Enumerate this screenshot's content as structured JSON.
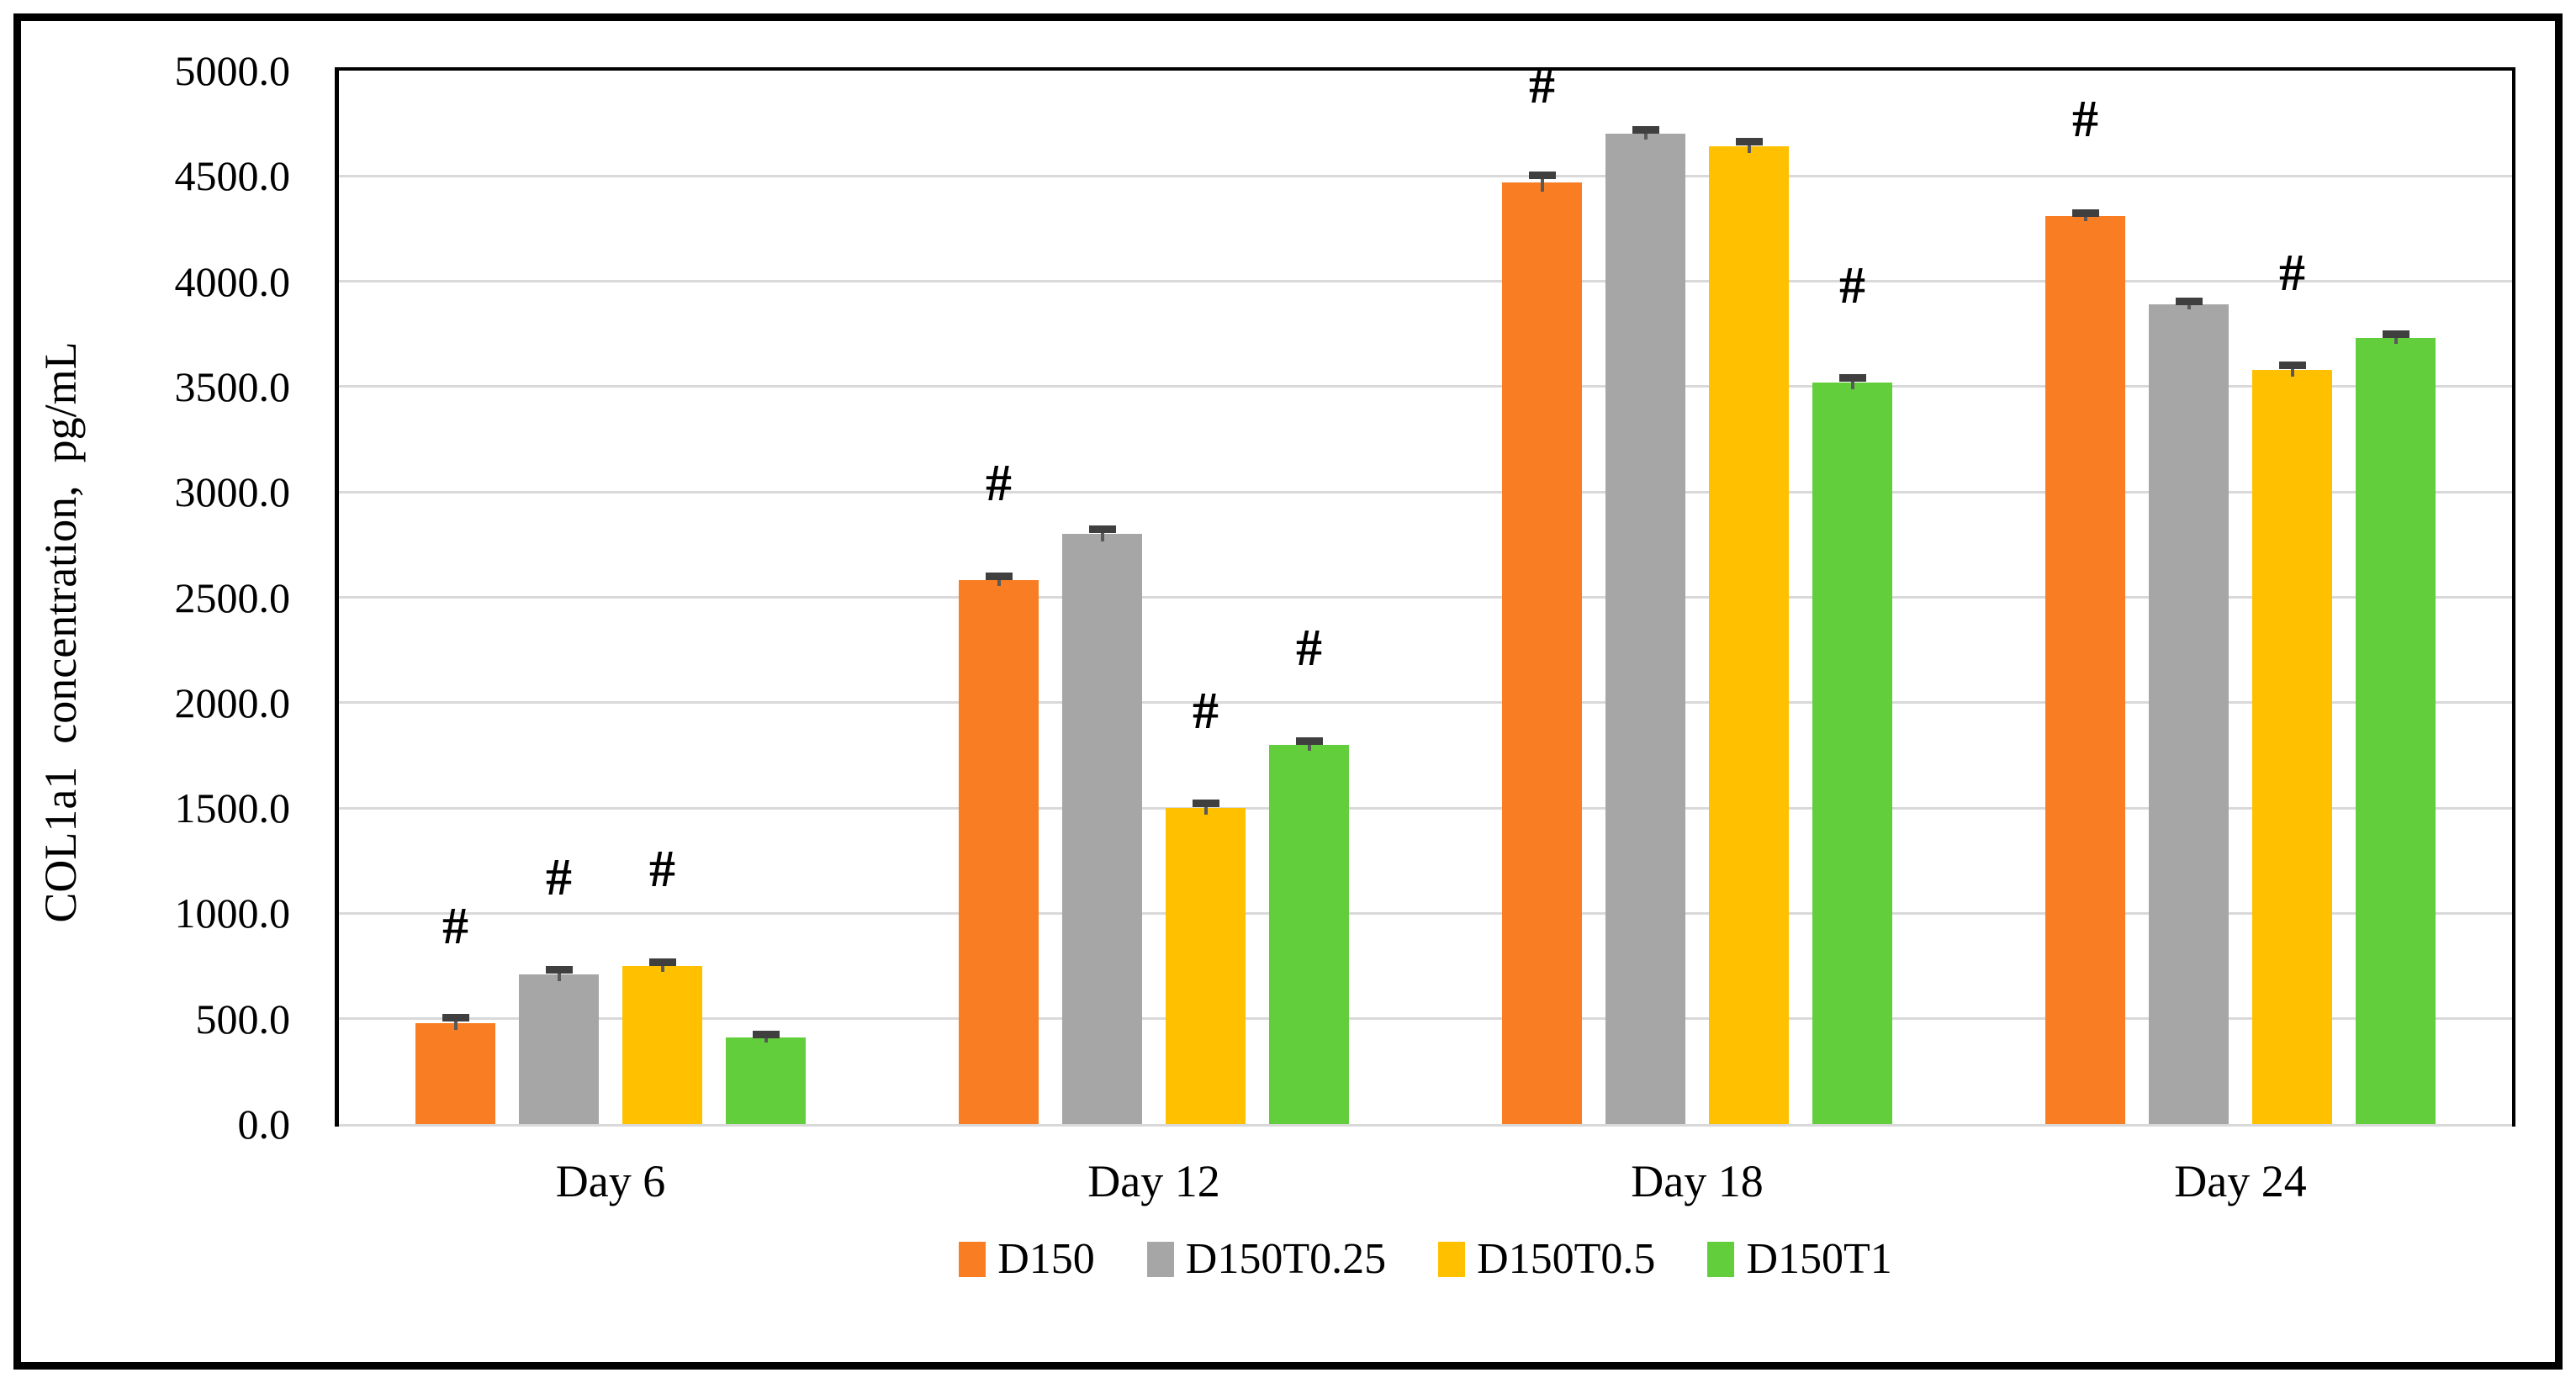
{
  "figure": {
    "background": "#ffffff",
    "border_color": "#000000"
  },
  "chart_data": {
    "type": "bar",
    "title": "",
    "xlabel": "",
    "ylabel": "COL1a1  concentration,  pg/mL",
    "ylim": [
      0,
      5000
    ],
    "ytick_step": 500,
    "ytick_labels": [
      "0.0",
      "500.0",
      "1000.0",
      "1500.0",
      "2000.0",
      "2500.0",
      "3000.0",
      "3500.0",
      "4000.0",
      "4500.0",
      "5000.0"
    ],
    "categories": [
      "Day 6",
      "Day 12",
      "Day 18",
      "Day 24"
    ],
    "series": [
      {
        "name": "D150",
        "color": "#F97D23",
        "values": [
          480,
          2580,
          4470,
          4310
        ],
        "errors": [
          25,
          20,
          35,
          15
        ],
        "hash": [
          true,
          true,
          true,
          true
        ]
      },
      {
        "name": "D150T0.25",
        "color": "#A6A6A6",
        "values": [
          710,
          2800,
          4700,
          3890
        ],
        "errors": [
          25,
          25,
          20,
          15
        ],
        "hash": [
          true,
          false,
          false,
          false
        ]
      },
      {
        "name": "D150T0.5",
        "color": "#FFC000",
        "values": [
          750,
          1500,
          4640,
          3580
        ],
        "errors": [
          20,
          25,
          25,
          25
        ],
        "hash": [
          true,
          true,
          false,
          true
        ]
      },
      {
        "name": "D150T1",
        "color": "#63CE3B",
        "values": [
          410,
          1800,
          3520,
          3730
        ],
        "errors": [
          15,
          20,
          25,
          20
        ],
        "hash": [
          false,
          true,
          true,
          false
        ]
      }
    ],
    "hash_symbol": "#",
    "grid": true,
    "gridline_color": "#d9d9d9",
    "error_bar_line_color": "#595959",
    "error_bar_cap_color": "#3f3f3f",
    "legend_position": "bottom"
  }
}
